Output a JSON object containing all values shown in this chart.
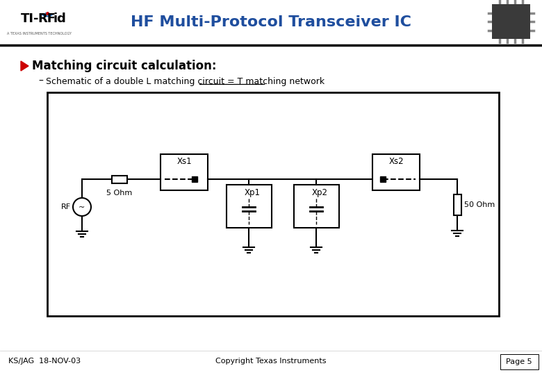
{
  "title": "HF Multi-Protocol Transceiver IC",
  "bullet_text": "Matching circuit calculation:",
  "sub_bullet_normal": "Schematic of a double L matching circuit = ",
  "sub_bullet_underline": "T matching network",
  "footer_left": "KS/JAG  18-NOV-03",
  "footer_center": "Copyright Texas Instruments",
  "footer_right": "Page 5",
  "title_color": "#1f4e9e",
  "bullet_color": "#cc0000",
  "bg_color": "#ffffff",
  "line_color": "#000000",
  "xs1_label": "Xs1",
  "xs2_label": "Xs2",
  "xp1_label": "Xp1",
  "xp2_label": "Xp2",
  "r_left_label": "5 Ohm",
  "r_right_label": "50 Ohm",
  "rf_label": "RF"
}
